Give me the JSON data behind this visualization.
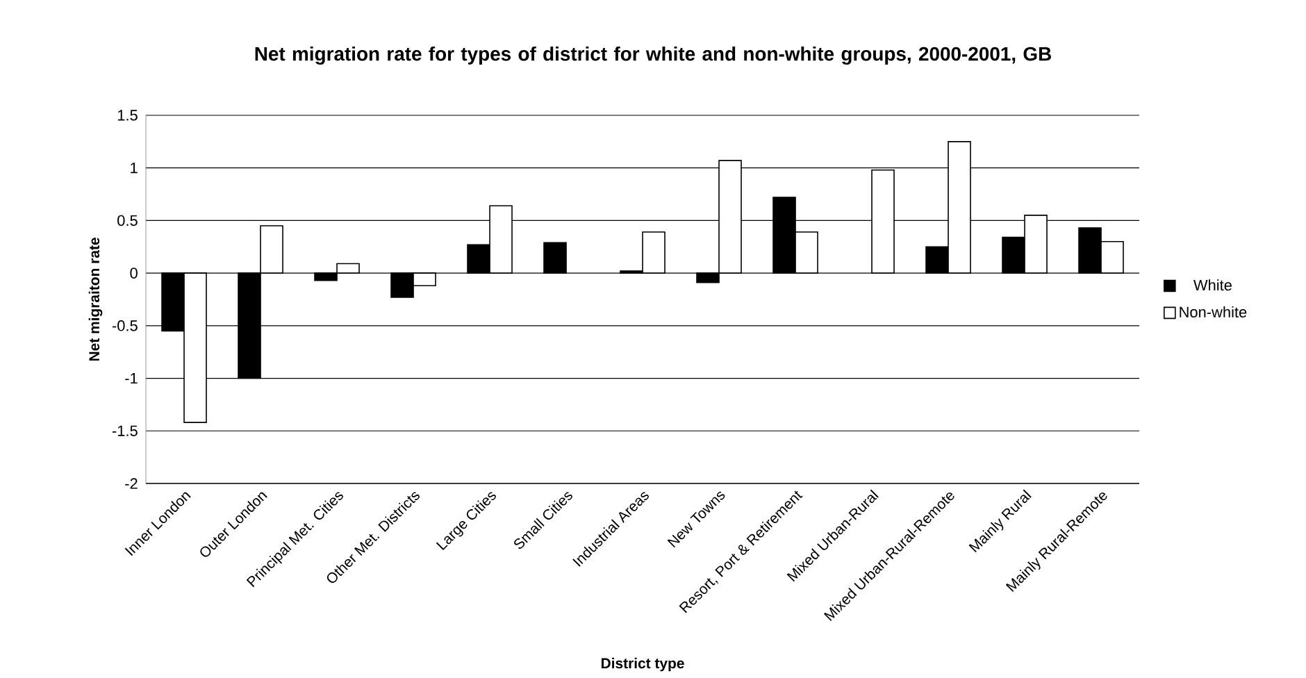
{
  "chart_data": {
    "type": "bar",
    "title": "Net migration rate for types of district for white and non-white groups, 2000-2001, GB",
    "xlabel": "District type",
    "ylabel": "Net migraiton rate",
    "categories": [
      "Inner London",
      "Outer London",
      "Principal Met. Cities",
      "Other Met. Districts",
      "Large Cities",
      "Small Cities",
      "Industrial Areas",
      "New Towns",
      "Resort, Port & Retirement",
      "Mixed Urban-Rural",
      "Mixed Urban-Rural-Remote",
      "Mainly Rural",
      "Mainly Rural-Remote"
    ],
    "series": [
      {
        "name": "White",
        "color": "#000000",
        "values": [
          -0.55,
          -1.0,
          -0.07,
          -0.23,
          0.27,
          0.29,
          0.02,
          -0.09,
          0.72,
          null,
          0.25,
          0.34,
          0.43
        ]
      },
      {
        "name": "Non-white",
        "color": "#ffffff",
        "values": [
          -1.42,
          0.45,
          0.09,
          -0.12,
          0.64,
          null,
          0.39,
          1.07,
          0.39,
          0.98,
          1.25,
          0.55,
          0.3
        ]
      }
    ],
    "ylim": [
      -2,
      1.5
    ],
    "yticks": [
      -2,
      -1.5,
      -1,
      -0.5,
      0,
      0.5,
      1,
      1.5
    ],
    "grid": "y",
    "legend": "right"
  }
}
